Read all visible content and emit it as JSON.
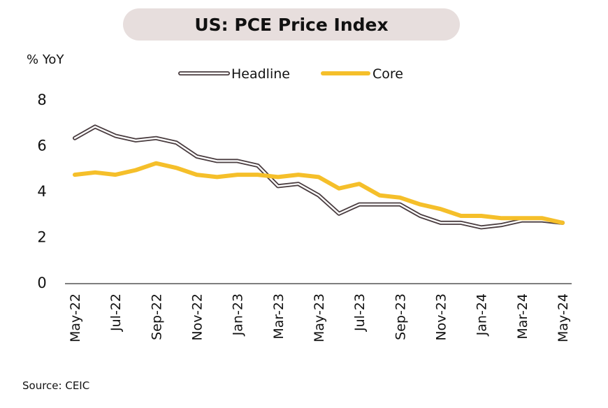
{
  "chart_data": {
    "type": "line",
    "title": "US: PCE Price Index",
    "ylabel": "% YoY",
    "xlabel": "",
    "ylim": [
      0,
      8
    ],
    "yticks": [
      0,
      2,
      4,
      6,
      8
    ],
    "legend_position": "top",
    "grid": false,
    "x": [
      "May-22",
      "Jun-22",
      "Jul-22",
      "Aug-22",
      "Sep-22",
      "Oct-22",
      "Nov-22",
      "Dec-22",
      "Jan-23",
      "Feb-23",
      "Mar-23",
      "Apr-23",
      "May-23",
      "Jun-23",
      "Jul-23",
      "Aug-23",
      "Sep-23",
      "Oct-23",
      "Nov-23",
      "Dec-23",
      "Jan-24",
      "Feb-24",
      "Mar-24",
      "Apr-24",
      "May-24"
    ],
    "x_tick_labels": [
      "May-22",
      "Jul-22",
      "Sep-22",
      "Nov-22",
      "Jan-23",
      "Mar-23",
      "May-23",
      "Jul-23",
      "Sep-23",
      "Nov-23",
      "Jan-24",
      "Mar-24",
      "May-24"
    ],
    "series": [
      {
        "name": "Headline",
        "color": "#4a3d40",
        "style": "hollow",
        "values": [
          6.3,
          6.8,
          6.4,
          6.2,
          6.3,
          6.1,
          5.5,
          5.3,
          5.3,
          5.1,
          4.2,
          4.3,
          3.8,
          3.0,
          3.4,
          3.4,
          3.4,
          2.9,
          2.6,
          2.6,
          2.4,
          2.5,
          2.7,
          2.7,
          2.6
        ]
      },
      {
        "name": "Core",
        "color": "#f5bf2a",
        "style": "solid",
        "values": [
          4.7,
          4.8,
          4.7,
          4.9,
          5.2,
          5.0,
          4.7,
          4.6,
          4.7,
          4.7,
          4.6,
          4.7,
          4.6,
          4.1,
          4.3,
          3.8,
          3.7,
          3.4,
          3.2,
          2.9,
          2.9,
          2.8,
          2.8,
          2.8,
          2.6
        ]
      }
    ]
  },
  "source": "Source: CEIC",
  "colors": {
    "title_bg": "#e7dedd",
    "axis": "#555555"
  }
}
